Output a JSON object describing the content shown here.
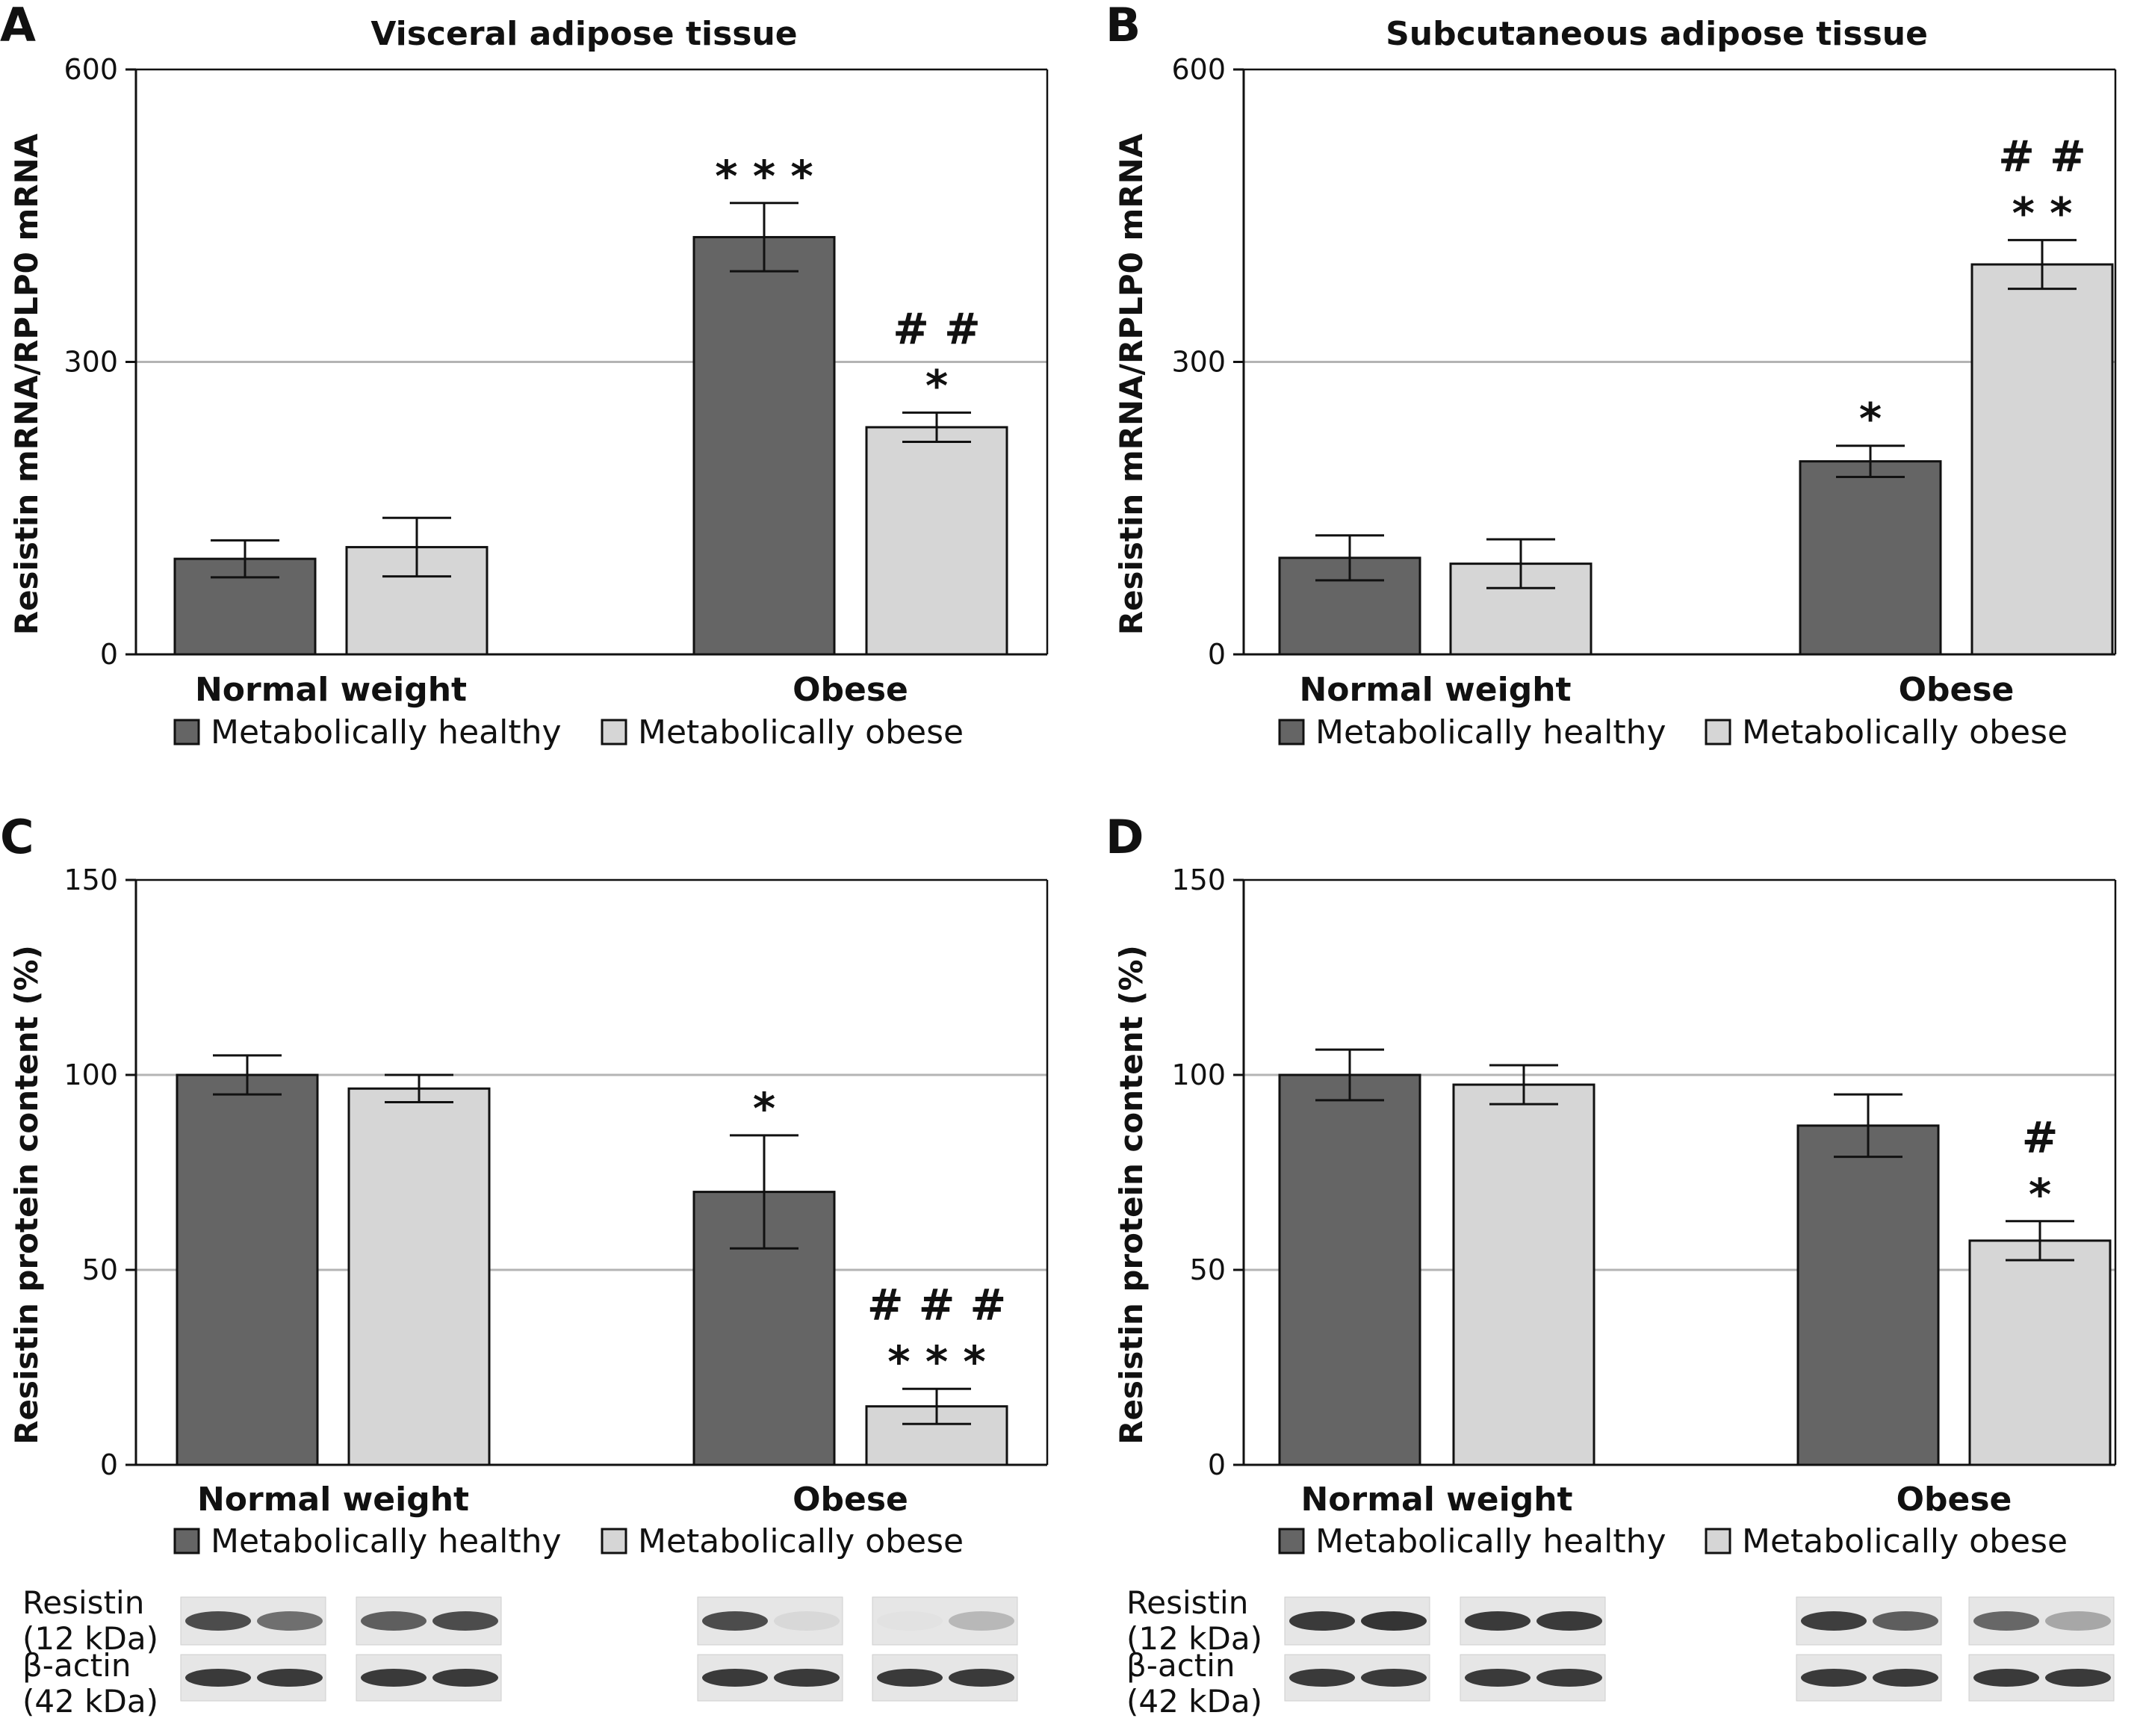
{
  "colors": {
    "healthy": "#656565",
    "obese": "#d6d6d6",
    "grid": "#b4b4b4",
    "axis": "#111111",
    "blot_bg": "#e6e6e6",
    "band": "#303030"
  },
  "legend": {
    "healthy": "Metabolically healthy",
    "obese": "Metabolically obese"
  },
  "categories": [
    "Normal weight",
    "Obese"
  ],
  "chart_data": [
    {
      "panel": "A",
      "type": "bar",
      "title": "Visceral adipose tissue",
      "ylabel": "Resistin mRNA/RPLP0 mRNA",
      "ylim": [
        0,
        600
      ],
      "yticks": [
        0,
        300,
        600
      ],
      "grid": "horizontal",
      "categories": [
        "Normal weight",
        "Obese"
      ],
      "series": [
        {
          "name": "Metabolically healthy",
          "values": [
            98,
            428
          ],
          "errors": [
            19,
            35
          ],
          "annotations": [
            "",
            "* * *"
          ]
        },
        {
          "name": "Metabolically obese",
          "values": [
            110,
            233
          ],
          "errors": [
            30,
            15
          ],
          "annotations": [
            "",
            "##\n*"
          ]
        }
      ]
    },
    {
      "panel": "B",
      "type": "bar",
      "title": "Subcutaneous adipose tissue",
      "ylabel": "Resistin mRNA/RPLP0 mRNA",
      "ylim": [
        0,
        600
      ],
      "yticks": [
        0,
        300,
        600
      ],
      "grid": "horizontal",
      "categories": [
        "Normal weight",
        "Obese"
      ],
      "series": [
        {
          "name": "Metabolically healthy",
          "values": [
            99,
            198
          ],
          "errors": [
            23,
            16
          ],
          "annotations": [
            "",
            "*"
          ]
        },
        {
          "name": "Metabolically obese",
          "values": [
            93,
            400
          ],
          "errors": [
            25,
            25
          ],
          "annotations": [
            "",
            "##\n* *"
          ]
        }
      ]
    },
    {
      "panel": "C",
      "type": "bar",
      "title": "",
      "ylabel": "Resistin protein content (%)",
      "ylim": [
        0,
        150
      ],
      "yticks": [
        0,
        50,
        100,
        150
      ],
      "grid": "horizontal",
      "categories": [
        "Normal weight",
        "Obese"
      ],
      "series": [
        {
          "name": "Metabolically healthy",
          "values": [
            100,
            70
          ],
          "errors": [
            5,
            14.5
          ],
          "annotations": [
            "",
            "*"
          ]
        },
        {
          "name": "Metabolically obese",
          "values": [
            96.5,
            15
          ],
          "errors": [
            3.5,
            4.5
          ],
          "annotations": [
            "",
            "###\n* * *"
          ]
        }
      ]
    },
    {
      "panel": "D",
      "type": "bar",
      "title": "",
      "ylabel": "Resistin protein content (%)",
      "ylim": [
        0,
        150
      ],
      "yticks": [
        0,
        50,
        100,
        150
      ],
      "grid": "horizontal",
      "categories": [
        "Normal weight",
        "Obese"
      ],
      "series": [
        {
          "name": "Metabolically healthy",
          "values": [
            100,
            87
          ],
          "errors": [
            6.5,
            8
          ],
          "annotations": [
            "",
            ""
          ]
        },
        {
          "name": "Metabolically obese",
          "values": [
            97.5,
            57.5
          ],
          "errors": [
            5,
            5
          ],
          "annotations": [
            "",
            "#\n*"
          ]
        }
      ]
    }
  ],
  "blots": {
    "resistin_label": "Resistin\n(12 kDa)",
    "actin_label": "β-actin\n(42 kDa)",
    "C": {
      "resistin": [
        [
          0.85,
          0.65
        ],
        [
          0.75,
          0.85
        ],
        [
          0.85,
          0.08
        ],
        [
          0.02,
          0.25
        ]
      ],
      "actin": [
        [
          0.95,
          0.95
        ],
        [
          0.95,
          0.95
        ],
        [
          0.95,
          0.95
        ],
        [
          0.95,
          0.95
        ]
      ]
    },
    "D": {
      "resistin": [
        [
          0.95,
          0.98
        ],
        [
          0.95,
          0.95
        ],
        [
          0.92,
          0.75
        ],
        [
          0.7,
          0.35
        ]
      ],
      "actin": [
        [
          0.95,
          0.95
        ],
        [
          0.95,
          0.95
        ],
        [
          0.95,
          0.95
        ],
        [
          0.95,
          0.95
        ]
      ]
    }
  }
}
